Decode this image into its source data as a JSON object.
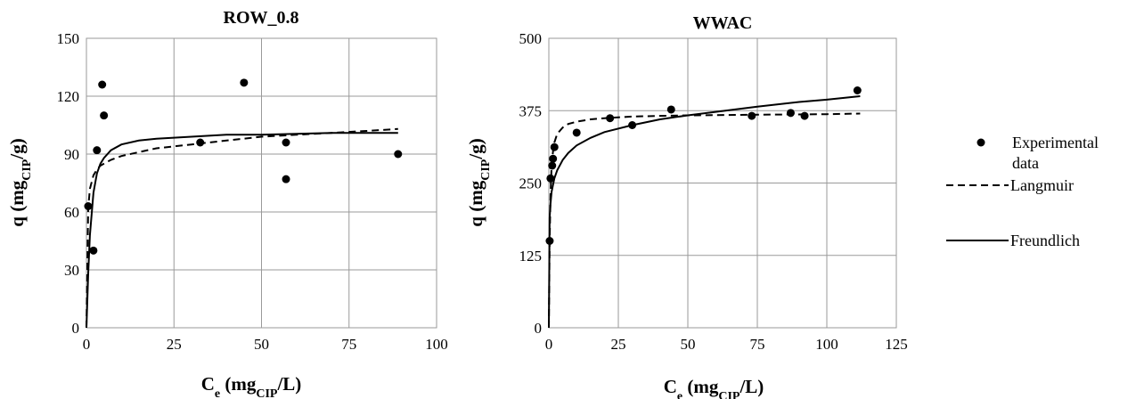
{
  "legend": {
    "experimental_line1": "Experimental",
    "experimental_line2": "data",
    "langmuir": "Langmuir",
    "freundlich": "Freundlich"
  },
  "chart_data": [
    {
      "type": "scatter",
      "title": "ROW_0.8",
      "xlabel": {
        "main": "C",
        "sub1": "e",
        "mid": " (mg",
        "sub2": "CIP",
        "end": "/L)"
      },
      "ylabel": {
        "main": "q (mg",
        "sub": "CIP",
        "end": "/g)"
      },
      "xlim": [
        0,
        100
      ],
      "ylim": [
        0,
        150
      ],
      "xticks": [
        0,
        25,
        50,
        75,
        100
      ],
      "yticks": [
        0,
        30,
        60,
        90,
        120,
        150
      ],
      "grid": true,
      "experimental": [
        [
          0.5,
          63
        ],
        [
          2.0,
          40
        ],
        [
          3.0,
          92
        ],
        [
          4.5,
          126
        ],
        [
          5.0,
          110
        ],
        [
          32.5,
          96
        ],
        [
          45.0,
          127
        ],
        [
          57.0,
          96
        ],
        [
          57.0,
          77
        ],
        [
          89.0,
          90
        ]
      ],
      "langmuir": {
        "x": [
          0,
          0.5,
          1,
          2,
          3,
          4,
          5,
          7,
          10,
          15,
          20,
          30,
          40,
          50,
          60,
          70,
          80,
          89
        ],
        "y": [
          0,
          62,
          72,
          79,
          82,
          84,
          85,
          87,
          89,
          91,
          93,
          95,
          97,
          99,
          100,
          101,
          102,
          103
        ]
      },
      "freundlich": {
        "x": [
          0,
          0.5,
          1,
          2,
          3,
          4,
          5,
          7,
          10,
          15,
          20,
          30,
          40,
          50,
          60,
          70,
          80,
          89
        ],
        "y": [
          0,
          28,
          48,
          70,
          80,
          85,
          88,
          92,
          95,
          97,
          98,
          99,
          100,
          100,
          100.5,
          101,
          101,
          101
        ]
      }
    },
    {
      "type": "scatter",
      "title": "WWAC",
      "xlabel": {
        "main": "C",
        "sub1": "e",
        "mid": " (mg",
        "sub2": "CIP",
        "end": "/L)"
      },
      "ylabel": {
        "main": "q (mg",
        "sub": "CIP",
        "end": "/g)"
      },
      "xlim": [
        0,
        125
      ],
      "ylim": [
        0,
        500
      ],
      "xticks": [
        0,
        25,
        50,
        75,
        100,
        125
      ],
      "yticks": [
        0,
        125,
        250,
        375,
        500
      ],
      "grid": true,
      "experimental": [
        [
          0.3,
          150
        ],
        [
          0.6,
          258
        ],
        [
          1.2,
          280
        ],
        [
          1.5,
          292
        ],
        [
          2.0,
          312
        ],
        [
          10.0,
          337
        ],
        [
          22.0,
          362
        ],
        [
          30.0,
          350
        ],
        [
          44.0,
          377
        ],
        [
          73.0,
          366
        ],
        [
          87.0,
          371
        ],
        [
          92.0,
          366
        ],
        [
          111.0,
          410
        ]
      ],
      "langmuir": {
        "x": [
          0,
          0.3,
          0.6,
          1,
          1.5,
          2,
          3,
          5,
          7,
          10,
          15,
          20,
          30,
          50,
          75,
          100,
          112
        ],
        "y": [
          0,
          150,
          230,
          280,
          305,
          320,
          335,
          346,
          352,
          356,
          360,
          362,
          365,
          367,
          368,
          369,
          370
        ]
      },
      "freundlich": {
        "x": [
          0,
          0.3,
          0.6,
          1,
          2,
          3,
          5,
          7,
          10,
          15,
          20,
          30,
          40,
          50,
          60,
          75,
          90,
          100,
          112
        ],
        "y": [
          0,
          190,
          215,
          235,
          258,
          272,
          290,
          302,
          315,
          328,
          338,
          350,
          360,
          367,
          373,
          382,
          390,
          394,
          400
        ]
      }
    }
  ]
}
